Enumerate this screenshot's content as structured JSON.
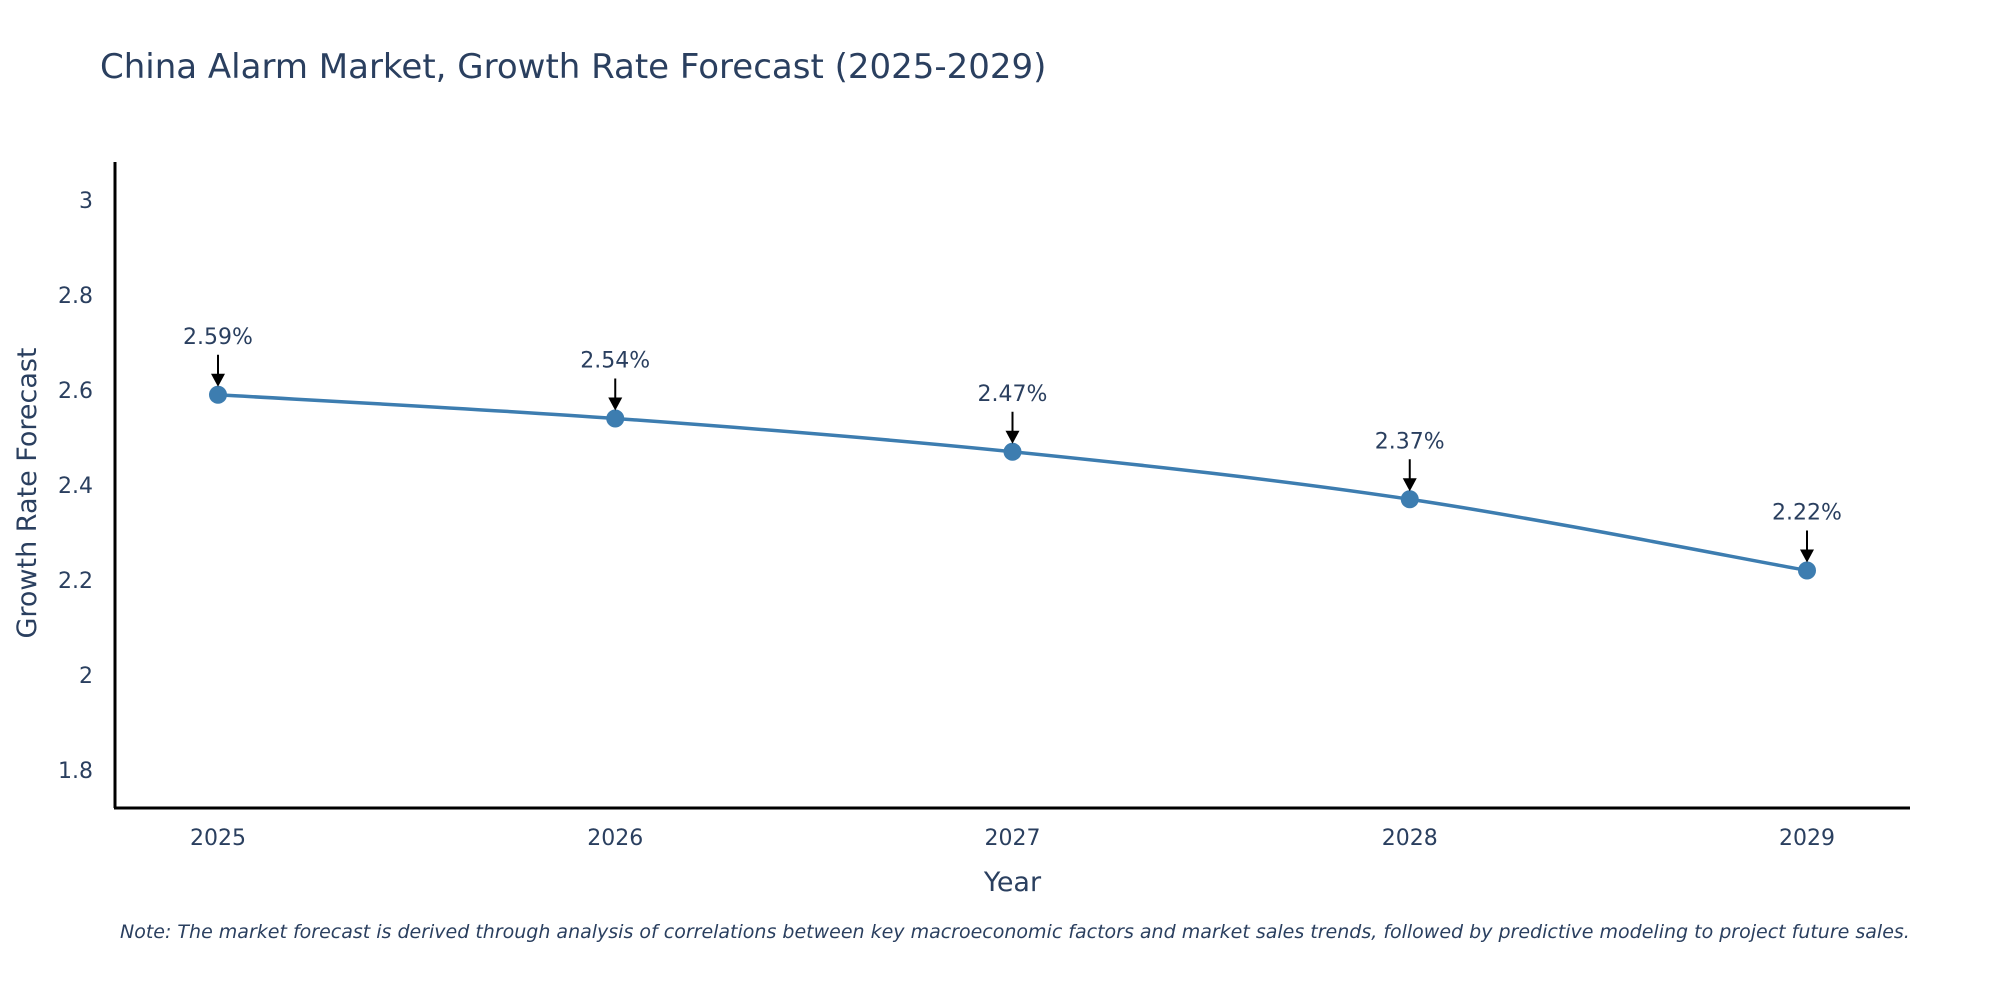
{
  "chart_data": {
    "type": "line",
    "title": "China Alarm Market, Growth Rate Forecast (2025-2029)",
    "xlabel": "Year",
    "ylabel": "Growth Rate Forecast",
    "categories": [
      "2025",
      "2026",
      "2027",
      "2028",
      "2029"
    ],
    "values": [
      2.59,
      2.54,
      2.47,
      2.37,
      2.22
    ],
    "data_labels": [
      "2.59%",
      "2.54%",
      "2.47%",
      "2.37%",
      "2.22%"
    ],
    "yticks": [
      1.8,
      2,
      2.2,
      2.4,
      2.6,
      2.8,
      3
    ],
    "ytick_labels": [
      "1.8",
      "2",
      "2.2",
      "2.4",
      "2.6",
      "2.8",
      "3"
    ],
    "ylim": [
      1.72,
      3.08
    ],
    "grid": false,
    "line_shape": "spline",
    "series_color": "#3d7db0",
    "axis_color": "#000000",
    "note": "Note: The market forecast is derived through analysis of correlations between key macroeconomic factors and market sales trends, followed by predictive modeling to project future sales."
  }
}
